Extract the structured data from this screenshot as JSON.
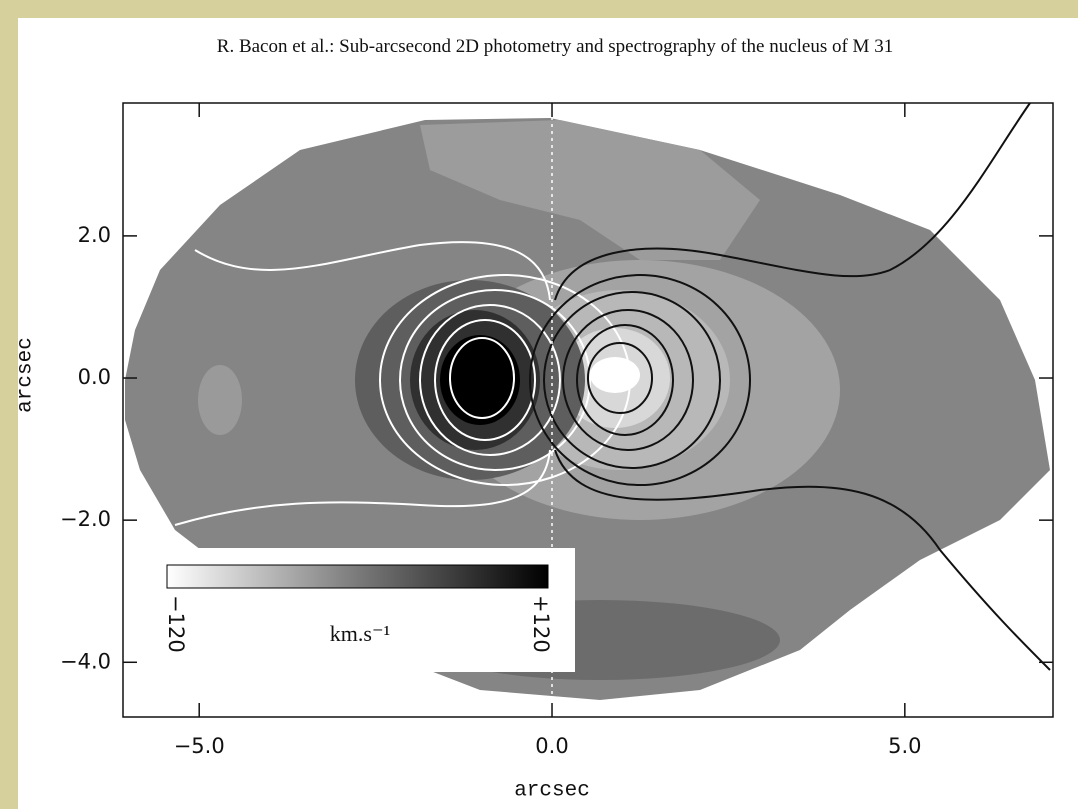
{
  "chart_data": {
    "type": "velocity-map",
    "title": "R. Bacon et al.: Sub-arcsecond 2D photometry and spectrography of the nucleus of M 31",
    "xlabel": "arcsec",
    "ylabel": "arcsec",
    "xlim": [
      -6.08,
      7.1
    ],
    "ylim": [
      -4.77,
      3.87
    ],
    "xticks": [
      {
        "value": -5,
        "label": "−5.0"
      },
      {
        "value": 0,
        "label": "0.0"
      },
      {
        "value": 5,
        "label": "5.0"
      }
    ],
    "yticks": [
      {
        "value": 2,
        "label": "2.0"
      },
      {
        "value": 0,
        "label": "0.0"
      },
      {
        "value": -2,
        "label": "−2.0"
      },
      {
        "value": -4,
        "label": "−4.0"
      }
    ],
    "colorbar": {
      "min": {
        "value": -120,
        "label": "−120"
      },
      "max": {
        "value": 120,
        "label": "+120"
      },
      "unit": "km.s⁻¹"
    }
  }
}
